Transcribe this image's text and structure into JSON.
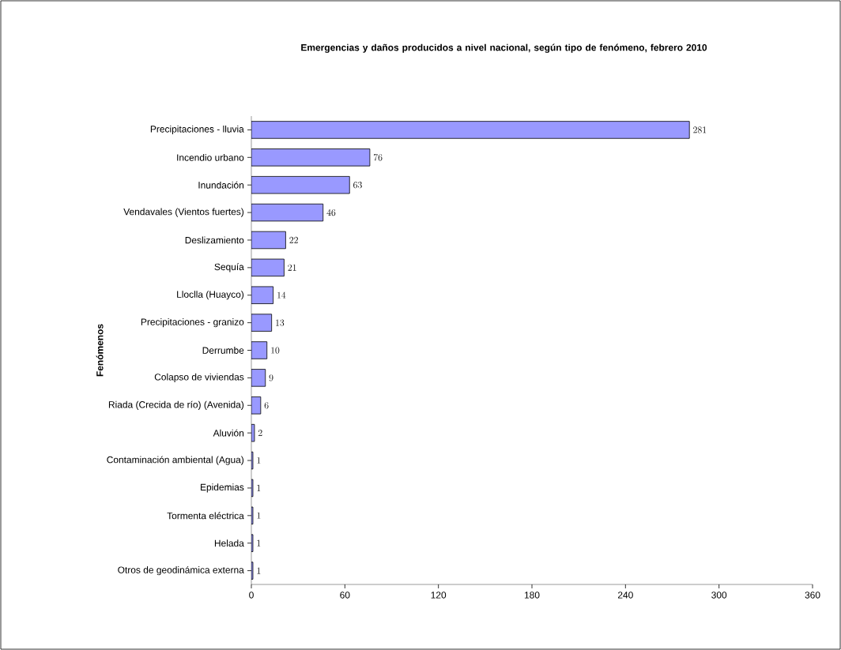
{
  "chart_data": {
    "type": "bar",
    "orientation": "horizontal",
    "title": "Emergencias y daños producidos a nivel nacional, según tipo de fenómeno, febrero 2010",
    "ylabel": "Fenómenos",
    "categories": [
      "Precipitaciones - lluvia",
      "Incendio urbano",
      "Inundación",
      "Vendavales (Vientos fuertes)",
      "Deslizamiento",
      "Sequía",
      "Lloclla (Huayco)",
      "Precipitaciones - granizo",
      "Derrumbe",
      "Colapso de viviendas",
      "Riada (Crecida de río) (Avenida)",
      "Aluvión",
      "Contaminación ambiental (Agua)",
      "Epidemias",
      "Tormenta eléctrica",
      "Helada",
      "Otros de geodinámica externa"
    ],
    "values": [
      281,
      76,
      63,
      46,
      22,
      21,
      14,
      13,
      10,
      9,
      6,
      2,
      1,
      1,
      1,
      1,
      1
    ],
    "color": "#9999ff",
    "xlim": [
      0,
      360
    ],
    "xticks": [
      0,
      60,
      120,
      180,
      240,
      300,
      360
    ],
    "data_labels": true
  }
}
